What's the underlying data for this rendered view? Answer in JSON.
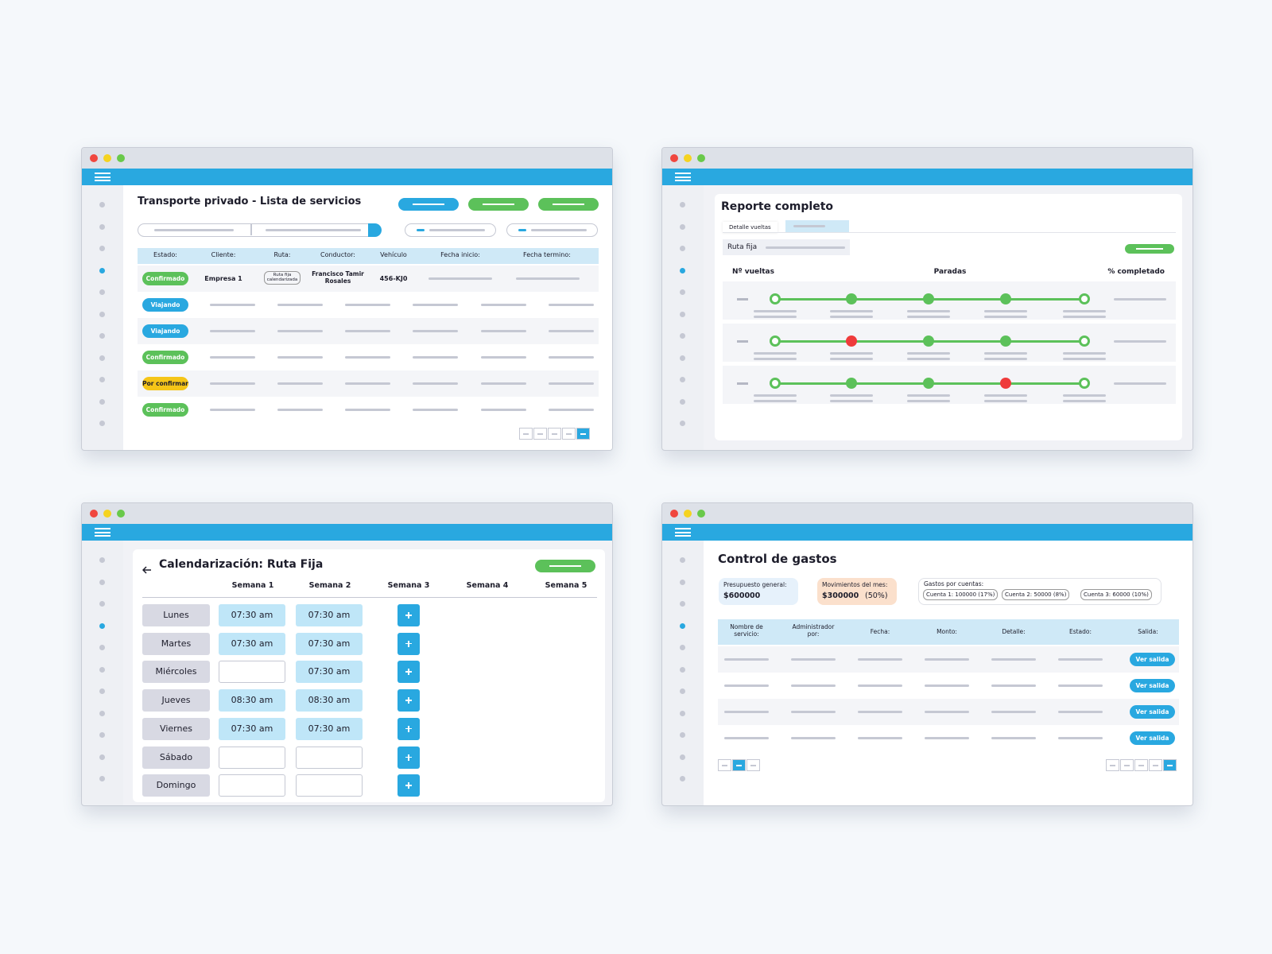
{
  "services": {
    "title": "Transporte privado - Lista de servicios",
    "columns": [
      "Estado:",
      "Cliente:",
      "Ruta:",
      "Conductor:",
      "Vehículo",
      "Fecha inicio:",
      "Fecha termino:"
    ],
    "rows": [
      {
        "status": "Confirmado",
        "status_color": "#5cc15a",
        "client": "Empresa 1",
        "route": "Ruta fija calendarizada",
        "driver": "Francisco Tamir Rosales",
        "vehicle": "456-KJ0"
      },
      {
        "status": "Viajando",
        "status_color": "#29a8e0"
      },
      {
        "status": "Viajando",
        "status_color": "#29a8e0"
      },
      {
        "status": "Confirmado",
        "status_color": "#5cc15a"
      },
      {
        "status": "Por confirmar",
        "status_color": "#f5c518"
      },
      {
        "status": "Confirmado",
        "status_color": "#5cc15a"
      }
    ]
  },
  "report": {
    "title": "Reporte completo",
    "tab": "Detalle vueltas",
    "route_label": "Ruta fija",
    "columns": [
      "Nº vueltas",
      "Paradas",
      "% completado"
    ],
    "laps": [
      {
        "stop_colors": [
          "#5cc15a",
          "#5cc15a",
          "#5cc15a",
          "#5cc15a",
          "#5cc15a"
        ]
      },
      {
        "stop_colors": [
          "#5cc15a",
          "#ef3b3b",
          "#5cc15a",
          "#5cc15a",
          "#5cc15a"
        ]
      },
      {
        "stop_colors": [
          "#5cc15a",
          "#5cc15a",
          "#5cc15a",
          "#ef3b3b",
          "#5cc15a"
        ]
      }
    ]
  },
  "schedule": {
    "title": "Calendarización: Ruta Fija",
    "weeks": [
      "Semana 1",
      "Semana 2",
      "Semana 3",
      "Semana 4",
      "Semana 5"
    ],
    "days": [
      {
        "day": "Lunes",
        "times": [
          "07:30 am",
          "07:30 am"
        ]
      },
      {
        "day": "Martes",
        "times": [
          "07:30 am",
          "07:30 am"
        ]
      },
      {
        "day": "Miércoles",
        "times": [
          null,
          "07:30 am"
        ]
      },
      {
        "day": "Jueves",
        "times": [
          "08:30 am",
          "08:30 am"
        ]
      },
      {
        "day": "Viernes",
        "times": [
          "07:30 am",
          "07:30 am"
        ]
      },
      {
        "day": "Sábado",
        "times": [
          null,
          null
        ]
      },
      {
        "day": "Domingo",
        "times": [
          null,
          null
        ]
      }
    ]
  },
  "expenses": {
    "title": "Control de gastos",
    "budget_label": "Presupuesto general:",
    "budget": "$600000",
    "month_label": "Movimientos del mes:",
    "month_amount": "$300000",
    "month_pct": "(50%)",
    "accounts_label": "Gastos por cuentas:",
    "accounts": [
      "Cuenta 1: 100000 (17%)",
      "Cuenta 2: 50000 (8%)",
      "Cuenta 3: 60000 (10%)"
    ],
    "columns": [
      "Nombre de servicio:",
      "Administrador por:",
      "Fecha:",
      "Monto:",
      "Detalle:",
      "Estado:",
      "Salida:"
    ],
    "button": "Ver salida",
    "row_count_buttons": [
      "Ver salida",
      "Ver salida",
      "Ver salida",
      "Ver salida"
    ]
  }
}
